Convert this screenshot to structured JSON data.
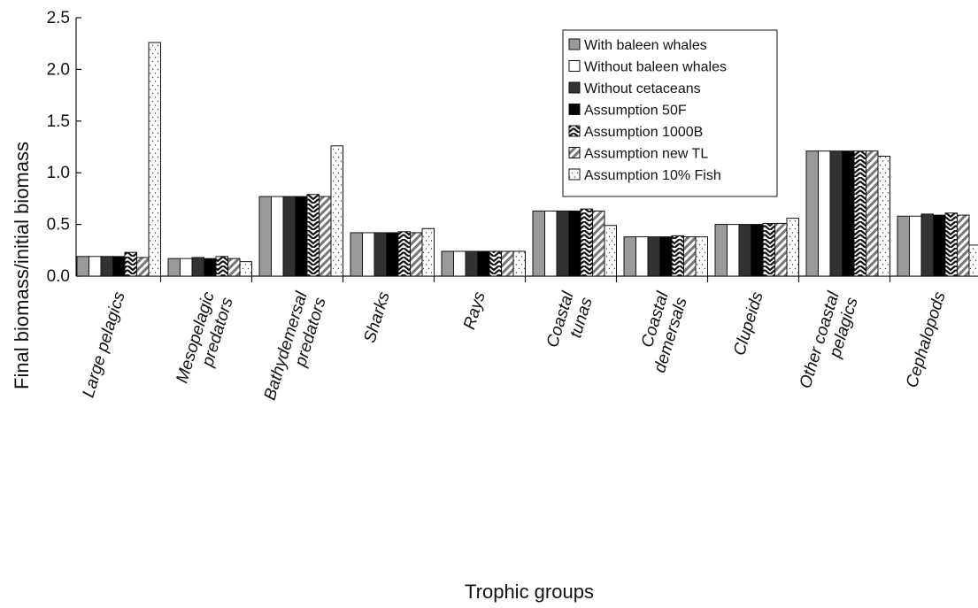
{
  "chart_data": {
    "type": "bar",
    "title": "",
    "xlabel": "Trophic groups",
    "ylabel": "Final biomass/initial biomass",
    "ylim": [
      0,
      2.5
    ],
    "yticks": [
      "0.0",
      "0.5",
      "1.0",
      "1.5",
      "2.0",
      "2.5"
    ],
    "grid": false,
    "legend_position": "top-right",
    "categories": [
      [
        "Large pelagics"
      ],
      [
        "Mesopelagic",
        "predators"
      ],
      [
        "Bathydemersal",
        "predators"
      ],
      [
        "Sharks"
      ],
      [
        "Rays"
      ],
      [
        "Coastal",
        "tunas"
      ],
      [
        "Coastal",
        "demersals"
      ],
      [
        "Clupeids"
      ],
      [
        "Other coastal",
        "pelagics"
      ],
      [
        "Cephalopods"
      ]
    ],
    "series": [
      {
        "name": "With baleen whales",
        "pattern": "gray",
        "values": [
          0.19,
          0.17,
          0.77,
          0.42,
          0.24,
          0.63,
          0.38,
          0.5,
          1.21,
          0.58
        ]
      },
      {
        "name": "Without baleen whales",
        "pattern": "white",
        "values": [
          0.19,
          0.17,
          0.77,
          0.42,
          0.24,
          0.63,
          0.38,
          0.5,
          1.21,
          0.58
        ]
      },
      {
        "name": "Without cetaceans",
        "pattern": "dark",
        "values": [
          0.19,
          0.18,
          0.77,
          0.42,
          0.24,
          0.63,
          0.38,
          0.5,
          1.21,
          0.6
        ]
      },
      {
        "name": "Assumption 50F",
        "pattern": "black",
        "values": [
          0.19,
          0.17,
          0.77,
          0.42,
          0.24,
          0.63,
          0.38,
          0.5,
          1.21,
          0.59
        ]
      },
      {
        "name": "Assumption 1000B",
        "pattern": "zigzag",
        "values": [
          0.23,
          0.19,
          0.79,
          0.43,
          0.24,
          0.65,
          0.39,
          0.51,
          1.21,
          0.61
        ]
      },
      {
        "name": "Assumption new TL",
        "pattern": "diagonal",
        "values": [
          0.18,
          0.17,
          0.77,
          0.42,
          0.24,
          0.63,
          0.38,
          0.51,
          1.21,
          0.59
        ]
      },
      {
        "name": "Assumption 10% Fish",
        "pattern": "dots",
        "values": [
          2.26,
          0.14,
          1.26,
          0.46,
          0.24,
          0.49,
          0.38,
          0.56,
          1.16,
          0.3
        ]
      }
    ]
  }
}
